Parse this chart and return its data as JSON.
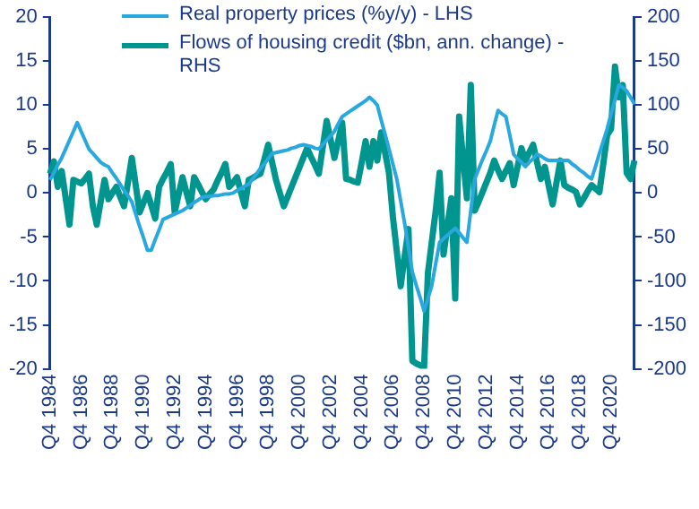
{
  "chart_data": {
    "type": "line",
    "categories": [
      "Q4 1984",
      null,
      null,
      null,
      null,
      null,
      null,
      null,
      "Q4 1986",
      null,
      null,
      null,
      null,
      null,
      null,
      null,
      "Q4 1988",
      null,
      null,
      null,
      null,
      null,
      null,
      null,
      "Q4 1990",
      null,
      null,
      null,
      null,
      null,
      null,
      null,
      "Q4 1992",
      null,
      null,
      null,
      null,
      null,
      null,
      null,
      "Q4 1994",
      null,
      null,
      null,
      null,
      null,
      null,
      null,
      "Q4 1996",
      null,
      null,
      null,
      null,
      null,
      null,
      null,
      "Q4 1998",
      null,
      null,
      null,
      null,
      null,
      null,
      null,
      "Q4 2000",
      null,
      null,
      null,
      null,
      null,
      null,
      null,
      "Q4 2002",
      null,
      null,
      null,
      null,
      null,
      null,
      null,
      "Q4 2004",
      null,
      null,
      null,
      null,
      null,
      null,
      null,
      "Q4 2006",
      null,
      null,
      null,
      null,
      null,
      null,
      null,
      "Q4 2008",
      null,
      null,
      null,
      null,
      null,
      null,
      null,
      "Q4 2010",
      null,
      null,
      null,
      null,
      null,
      null,
      null,
      "Q4 2012",
      null,
      null,
      null,
      null,
      null,
      null,
      null,
      "Q4 2014",
      null,
      null,
      null,
      null,
      null,
      null,
      null,
      "Q4 2016",
      null,
      null,
      null,
      null,
      null,
      null,
      null,
      "Q4 2018",
      null,
      null,
      null,
      null,
      null,
      null,
      null,
      "Q4 2020",
      null,
      null,
      null,
      null,
      null,
      null
    ],
    "series": [
      {
        "name": "Real property prices (%y/y) - LHS",
        "color": "#29a8e0",
        "values": [
          1.5,
          2.3,
          3.2,
          4,
          5,
          6,
          7,
          8,
          7,
          6,
          5,
          4.5,
          4,
          3.5,
          3.2,
          3,
          2.3,
          1.7,
          1,
          0.3,
          -0.3,
          -1,
          -2.4,
          -3.8,
          -5.1,
          -6.5,
          -6.5,
          -5.3,
          -4.2,
          -3,
          -2.8,
          -2.6,
          -2.4,
          -2.2,
          -2,
          -1.7,
          -1.4,
          -1.1,
          -0.8,
          -0.5,
          -0.4,
          -0.4,
          -0.3,
          -0.3,
          -0.2,
          -0.1,
          -0.1,
          0,
          0.3,
          0.5,
          0.8,
          1,
          1.6,
          2.2,
          2.8,
          3.3,
          3.9,
          4.5,
          4.6,
          4.7,
          4.8,
          4.9,
          5.1,
          5.2,
          5.4,
          5.5,
          5.4,
          5.3,
          5.1,
          5,
          5.5,
          6,
          6.5,
          7,
          7.9,
          8.7,
          9,
          9.3,
          9.6,
          9.9,
          10.2,
          10.5,
          10.9,
          10.5,
          10,
          8.3,
          6.7,
          5,
          3.3,
          1.6,
          -0.9,
          -3.4,
          -6.2,
          -9,
          -10.5,
          -11.9,
          -13.4,
          -12,
          -10.5,
          -8,
          -5.6,
          -5.2,
          -4.8,
          -4.4,
          -4,
          -4.5,
          -5.1,
          -5.6,
          -2,
          1.6,
          2.7,
          3.8,
          4.8,
          5.9,
          7.7,
          9.4,
          9,
          8.7,
          6.6,
          4.4,
          3.9,
          3.5,
          3,
          3.5,
          3.9,
          4.4,
          4.2,
          3.9,
          3.7,
          3.7,
          3.7,
          3.7,
          3.7,
          3.7,
          3.3,
          3,
          2.6,
          2.3,
          1.9,
          1.6,
          3,
          4.5,
          5.9,
          7.3,
          9,
          10.6,
          12.3,
          12,
          11.6,
          10.9,
          10.1
        ]
      },
      {
        "name": "Flows of housing credit ($bn, ann. change) - RHS",
        "color": "#00968f",
        "axis": "y2",
        "values": [
          22,
          36,
          7,
          25,
          -5,
          -36,
          15,
          13,
          11,
          16,
          22,
          -15,
          -36,
          -10,
          15,
          -7,
          0,
          7,
          -4,
          -15,
          12,
          40,
          9,
          -22,
          -11,
          0,
          -14,
          -29,
          7,
          16,
          24,
          33,
          -22,
          -2,
          18,
          1,
          -15,
          18,
          10,
          1,
          -7,
          -1,
          4,
          14,
          23,
          33,
          7,
          12,
          18,
          1,
          -15,
          15,
          17,
          20,
          22,
          38,
          55,
          35,
          15,
          0,
          -15,
          -4,
          7,
          18,
          29,
          40,
          51,
          41,
          32,
          22,
          52,
          82,
          61,
          40,
          60,
          80,
          16,
          15,
          13,
          12,
          35,
          59,
          30,
          59,
          37,
          69,
          46,
          23,
          -27,
          -66,
          -106,
          -73,
          -41,
          -191,
          -194,
          -196,
          -199,
          -91,
          -55,
          -20,
          23,
          -70,
          -38,
          -6,
          -120,
          87,
          40,
          -6,
          123,
          -20,
          -10,
          1,
          12,
          23,
          37,
          26,
          16,
          25,
          34,
          9,
          30,
          51,
          37,
          46,
          55,
          35,
          16,
          30,
          8,
          -13,
          12,
          37,
          9,
          6,
          4,
          1,
          -13,
          -6,
          2,
          9,
          5,
          1,
          33,
          66,
          73,
          144,
          109,
          123,
          23,
          16,
          37
        ]
      }
    ],
    "ylim": [
      -20,
      20
    ],
    "yticks": [
      -20,
      -15,
      -10,
      -5,
      0,
      5,
      10,
      15,
      20
    ],
    "y2lim": [
      -200,
      200
    ],
    "y2ticks": [
      -200,
      -150,
      -100,
      -50,
      0,
      50,
      100,
      150,
      200
    ],
    "grid": false,
    "legend": "top left",
    "marker": "none",
    "line_style": "solid"
  }
}
